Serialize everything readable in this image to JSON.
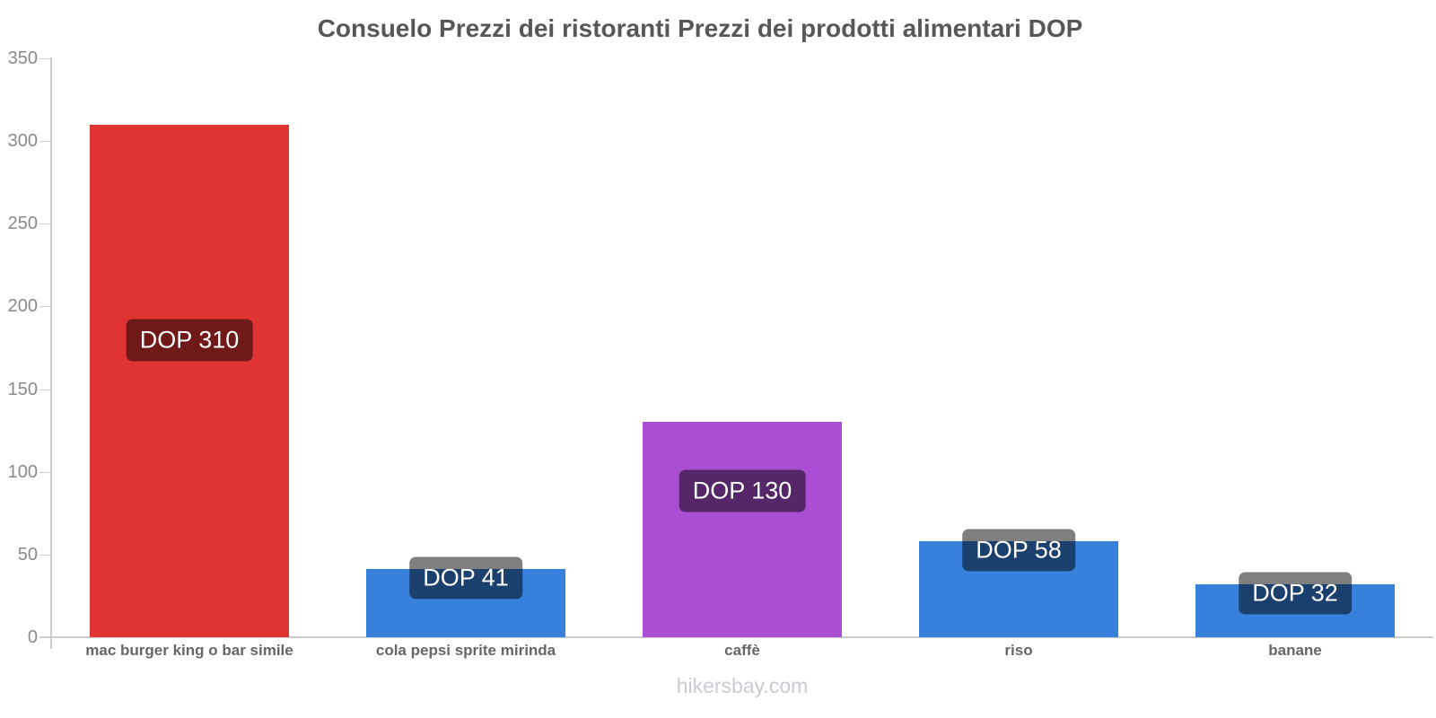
{
  "title": "Consuelo Prezzi dei ristoranti Prezzi dei prodotti alimentari DOP",
  "footer": "hikersbay.com",
  "chart_data": {
    "type": "bar",
    "title": "Consuelo Prezzi dei ristoranti Prezzi dei prodotti alimentari DOP",
    "currency": "DOP",
    "categories": [
      "mac burger king o bar simile",
      "cola pepsi sprite mirinda",
      "caffè",
      "riso",
      "banane"
    ],
    "values": [
      310,
      41,
      130,
      58,
      32
    ],
    "bar_labels": [
      "DOP 310",
      "DOP 41",
      "DOP 130",
      "DOP 58",
      "DOP 32"
    ],
    "bar_colors": [
      "#df3432",
      "#3781dd",
      "#aa4fd3",
      "#3781dd",
      "#3781dd"
    ],
    "ylim": [
      0,
      350
    ],
    "yticks": [
      0,
      50,
      100,
      150,
      200,
      250,
      300,
      350
    ],
    "xlabel": "",
    "ylabel": "",
    "grid": false,
    "legend": "none",
    "badge_bg": "rgba(0,0,0,0.5)",
    "axis_color": "#cccccc",
    "title_color": "#57575a",
    "ytick_label_color": "#8a8a8a",
    "xtick_label_color": "#666666",
    "footer_color": "#c9cbd3"
  }
}
